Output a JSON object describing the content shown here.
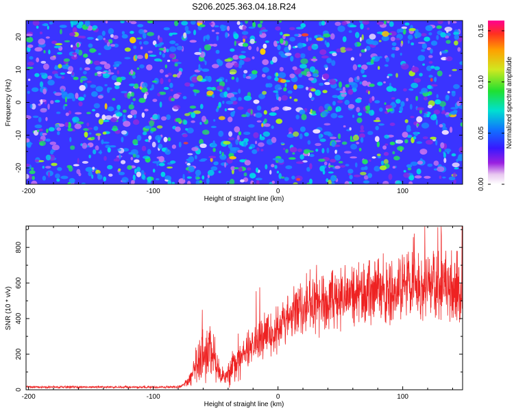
{
  "chart_data": [
    {
      "type": "heatmap",
      "title": "S206.2025.363.04.18.R24",
      "xlabel": "Height of straight line (km)",
      "ylabel": "Frequency (Hz)",
      "xlim": [
        -202,
        148
      ],
      "ylim": [
        -25,
        25
      ],
      "xticks": [
        -200,
        -100,
        0,
        100
      ],
      "yticks": [
        -20,
        -10,
        0,
        10,
        20
      ],
      "colorbar": {
        "label": "Normalized spectral amplitude",
        "range": [
          0.0,
          0.16
        ],
        "ticks": [
          "0.00",
          "0.05",
          "0.10",
          "0.15"
        ]
      },
      "description_values": {
        "typical_amplitude_range": [
          0.03,
          0.07
        ],
        "peak_amplitude_approx": 0.12
      }
    },
    {
      "type": "line",
      "xlabel": "Height of straight line (km)",
      "ylabel": "SNR (10 * v/v)",
      "xlim": [
        -202,
        148
      ],
      "ylim": [
        0,
        920
      ],
      "xticks": [
        -200,
        -100,
        0,
        100
      ],
      "yticks": [
        0,
        200,
        400,
        600,
        800
      ],
      "series": [
        {
          "name": "SNR",
          "color": "#ee2222",
          "x": [
            -202,
            -180,
            -160,
            -140,
            -120,
            -100,
            -80,
            -72,
            -68,
            -62,
            -58,
            -54,
            -50,
            -46,
            -42,
            -38,
            -34,
            -30,
            -26,
            -22,
            -18,
            -14,
            -10,
            -6,
            0,
            5,
            10,
            15,
            20,
            25,
            30,
            40,
            50,
            60,
            70,
            80,
            90,
            100,
            110,
            120,
            130,
            140,
            148
          ],
          "values": [
            15,
            15,
            15,
            15,
            15,
            15,
            15,
            40,
            100,
            190,
            220,
            230,
            150,
            90,
            70,
            110,
            160,
            200,
            210,
            230,
            250,
            280,
            300,
            320,
            340,
            380,
            410,
            450,
            470,
            480,
            490,
            510,
            520,
            540,
            550,
            555,
            560,
            565,
            570,
            580,
            575,
            570,
            560
          ]
        }
      ]
    }
  ]
}
